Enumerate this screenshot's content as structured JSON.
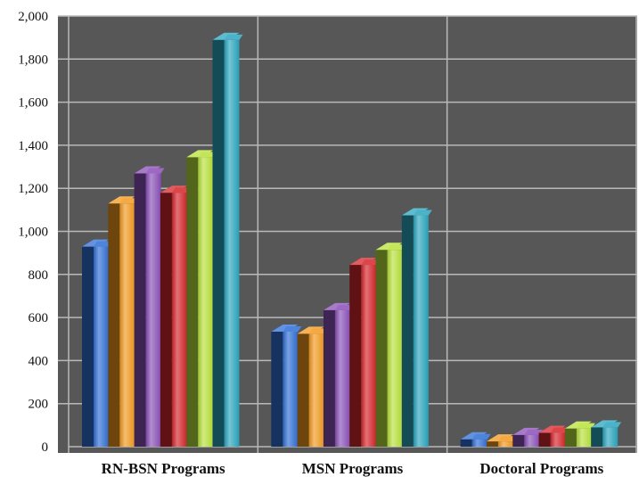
{
  "chart_data": {
    "type": "bar",
    "categories": [
      "RN-BSN Programs",
      "MSN Programs",
      "Doctoral Programs"
    ],
    "series": [
      {
        "values": [
          950,
          555,
          55
        ],
        "color": "#2f6fd6"
      },
      {
        "values": [
          1150,
          545,
          45
        ],
        "color": "#f39a1e"
      },
      {
        "values": [
          1290,
          655,
          75
        ],
        "color": "#8a4fb8"
      },
      {
        "values": [
          1200,
          865,
          85
        ],
        "color": "#d6252a"
      },
      {
        "values": [
          1365,
          935,
          105
        ],
        "color": "#b8e13a"
      },
      {
        "values": [
          1910,
          1095,
          110
        ],
        "color": "#2aa6bf"
      }
    ],
    "ylim": [
      0,
      2000
    ],
    "yticks": [
      "0",
      "200",
      "400",
      "600",
      "800",
      "1,000",
      "1,200",
      "1,400",
      "1,600",
      "1,800",
      "2,000"
    ],
    "grid": true,
    "background": "#575757"
  }
}
